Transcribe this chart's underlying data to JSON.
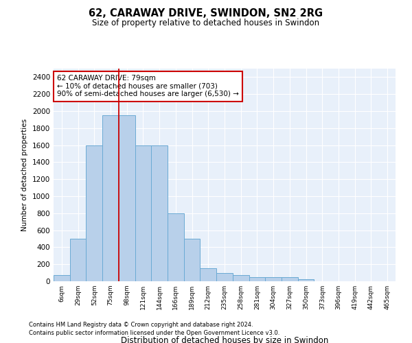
{
  "title": "62, CARAWAY DRIVE, SWINDON, SN2 2RG",
  "subtitle": "Size of property relative to detached houses in Swindon",
  "xlabel": "Distribution of detached houses by size in Swindon",
  "ylabel": "Number of detached properties",
  "bar_color": "#b8d0ea",
  "bar_edge_color": "#6aaad4",
  "background_color": "#e8f0fa",
  "grid_color": "#ffffff",
  "categories": [
    "6sqm",
    "29sqm",
    "52sqm",
    "75sqm",
    "98sqm",
    "121sqm",
    "144sqm",
    "166sqm",
    "189sqm",
    "212sqm",
    "235sqm",
    "258sqm",
    "281sqm",
    "304sqm",
    "327sqm",
    "350sqm",
    "373sqm",
    "396sqm",
    "419sqm",
    "442sqm",
    "465sqm"
  ],
  "values": [
    75,
    500,
    1600,
    1950,
    1950,
    1600,
    1600,
    800,
    500,
    150,
    100,
    75,
    50,
    50,
    50,
    25,
    0,
    0,
    0,
    0,
    0
  ],
  "ylim": [
    0,
    2500
  ],
  "yticks": [
    0,
    200,
    400,
    600,
    800,
    1000,
    1200,
    1400,
    1600,
    1800,
    2000,
    2200,
    2400
  ],
  "vline_color": "#cc0000",
  "annotation_text": "62 CARAWAY DRIVE: 79sqm\n← 10% of detached houses are smaller (703)\n90% of semi-detached houses are larger (6,530) →",
  "annotation_box_color": "#ffffff",
  "annotation_box_edge": "#cc0000",
  "footnote1": "Contains HM Land Registry data © Crown copyright and database right 2024.",
  "footnote2": "Contains public sector information licensed under the Open Government Licence v3.0."
}
